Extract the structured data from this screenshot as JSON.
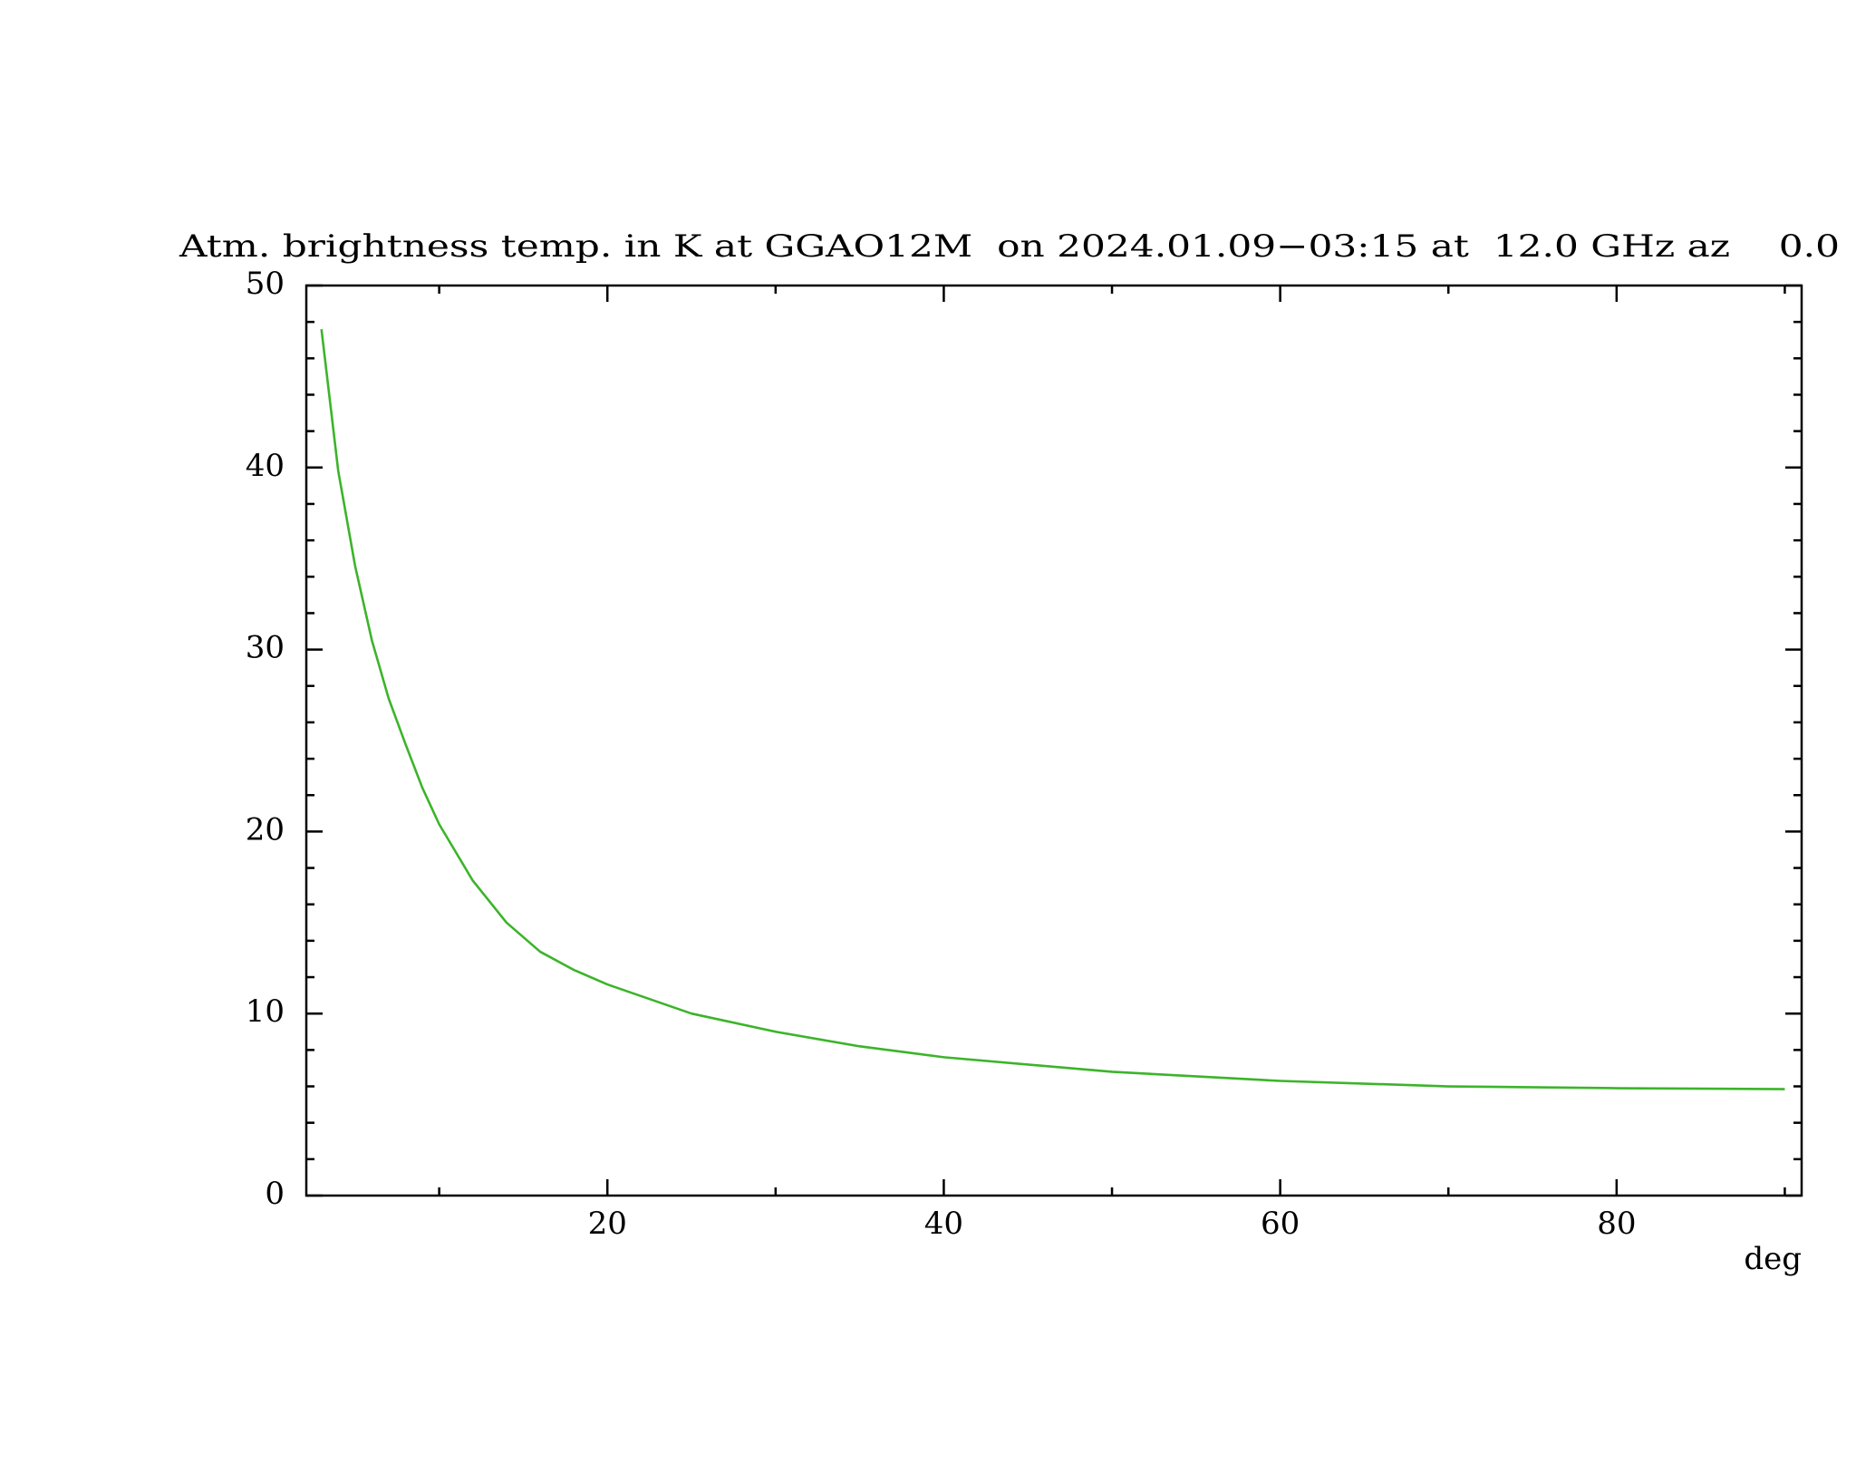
{
  "chart_data": {
    "type": "line",
    "title": "Atm. brightness temp. in K at GGAO12M  on 2024.01.09−03:15 at  12.0 GHz az    0.0",
    "xlabel": "deg",
    "x": [
      3,
      4,
      5,
      6,
      7,
      8,
      9,
      10,
      12,
      14,
      16,
      18,
      20,
      25,
      30,
      35,
      40,
      50,
      60,
      70,
      80,
      90
    ],
    "series": [
      {
        "color": "#3cb42a",
        "values": [
          47.6,
          39.8,
          34.6,
          30.5,
          27.3,
          24.8,
          22.4,
          20.4,
          17.3,
          15.0,
          13.4,
          12.4,
          11.6,
          10.0,
          9.0,
          8.2,
          7.6,
          6.8,
          6.3,
          6.0,
          5.9,
          5.85
        ]
      }
    ],
    "xlim": [
      2.1,
      91
    ],
    "xticks": [
      20,
      40,
      60,
      80
    ],
    "xminorticks": [
      10,
      30,
      50,
      70,
      90
    ],
    "ylim": [
      0,
      50
    ],
    "yticks": [
      0,
      10,
      20,
      30,
      40,
      50
    ],
    "yminorticks": [
      2,
      4,
      6,
      8,
      12,
      14,
      16,
      18,
      22,
      24,
      26,
      28,
      32,
      34,
      36,
      38,
      42,
      44,
      46,
      48
    ]
  }
}
